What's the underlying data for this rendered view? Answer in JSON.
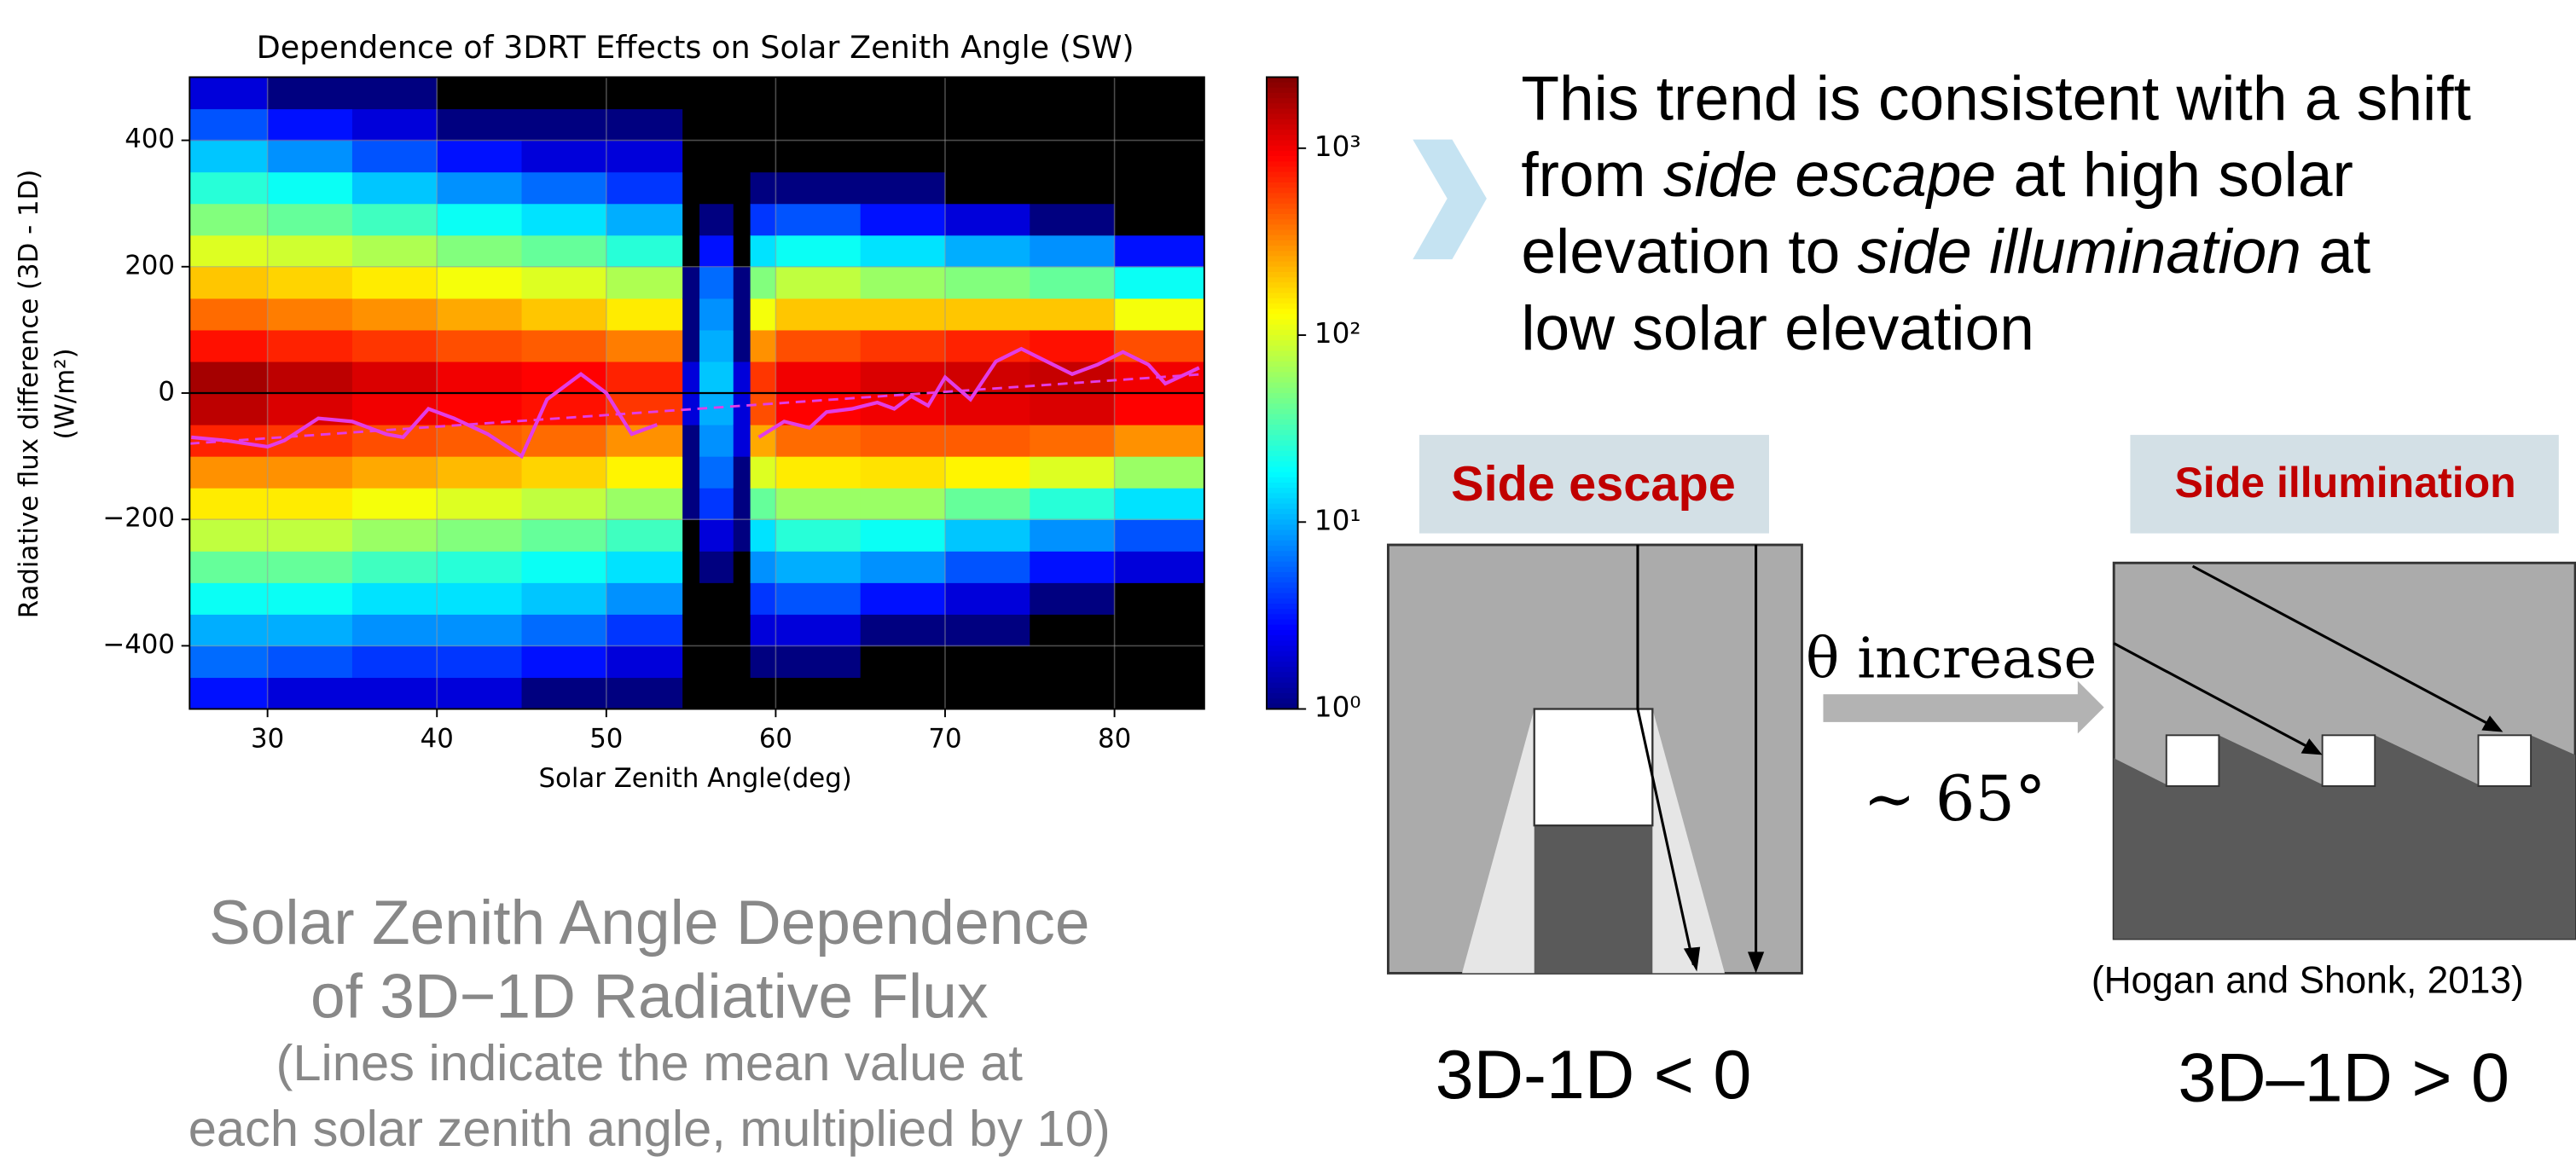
{
  "chart_data": {
    "type": "hist2d",
    "title": "Dependence of 3DRT Effects on Solar Zenith Angle (SW)",
    "xlabel": "Solar Zenith Angle(deg)",
    "ylabel": [
      "Radiative flux difference (3D - 1D)",
      "(W/m²)"
    ],
    "xlim": [
      25.4,
      85.3
    ],
    "ylim": [
      -500,
      500
    ],
    "xticks": [
      30,
      40,
      50,
      60,
      70,
      80
    ],
    "yticks": [
      {
        "value": -400,
        "label": "−400"
      },
      {
        "value": -200,
        "label": "−200"
      },
      0,
      200,
      400
    ],
    "grid": true,
    "colormap": "jet",
    "log_color": true,
    "clim": [
      1,
      2400
    ],
    "cticks": [
      {
        "value": 1,
        "label": "10⁰"
      },
      {
        "value": 10,
        "label": "10¹"
      },
      {
        "value": 100,
        "label": "10²"
      },
      {
        "value": 1000,
        "label": "10³"
      }
    ],
    "xbins": [
      25.4,
      30,
      35,
      40,
      45,
      50,
      54.5,
      55.5,
      57.5,
      58.5,
      60,
      65,
      70,
      75,
      80,
      85.3
    ],
    "ybins": [
      -500,
      -450,
      -400,
      -350,
      -300,
      -250,
      -200,
      -150,
      -100,
      -50,
      0,
      50,
      100,
      150,
      200,
      250,
      300,
      350,
      400,
      450,
      500
    ],
    "counts": [
      [
        3,
        6,
        10,
        20,
        40,
        80,
        150,
        300,
        700,
        1500,
        1800,
        800,
        400,
        200,
        100,
        50,
        25,
        12,
        5,
        2
      ],
      [
        2,
        5,
        10,
        20,
        40,
        80,
        150,
        300,
        600,
        1200,
        1500,
        700,
        350,
        180,
        90,
        40,
        20,
        8,
        3,
        1
      ],
      [
        2,
        4,
        8,
        15,
        30,
        60,
        120,
        250,
        500,
        1000,
        1200,
        600,
        300,
        150,
        70,
        30,
        12,
        5,
        2,
        1
      ],
      [
        2,
        4,
        8,
        15,
        25,
        50,
        100,
        220,
        450,
        900,
        1000,
        500,
        250,
        120,
        50,
        20,
        8,
        3,
        1,
        0
      ],
      [
        1,
        3,
        6,
        12,
        20,
        40,
        80,
        180,
        400,
        800,
        900,
        450,
        200,
        100,
        40,
        15,
        6,
        2,
        1,
        0
      ],
      [
        1,
        2,
        4,
        8,
        15,
        30,
        60,
        140,
        300,
        600,
        700,
        350,
        150,
        70,
        25,
        10,
        4,
        2,
        1,
        0
      ],
      [
        0,
        0,
        0,
        0,
        0,
        0,
        1,
        1,
        1,
        2,
        2,
        1,
        1,
        1,
        0,
        0,
        0,
        0,
        0,
        0
      ],
      [
        0,
        0,
        0,
        0,
        1,
        2,
        4,
        6,
        8,
        10,
        12,
        10,
        8,
        6,
        3,
        1,
        0,
        0,
        0,
        0
      ],
      [
        0,
        0,
        0,
        0,
        0,
        1,
        1,
        1,
        2,
        2,
        2,
        1,
        1,
        1,
        0,
        0,
        0,
        0,
        0,
        0
      ],
      [
        0,
        1,
        2,
        4,
        8,
        15,
        40,
        100,
        250,
        500,
        600,
        300,
        120,
        50,
        15,
        4,
        1,
        0,
        0,
        0
      ],
      [
        0,
        1,
        2,
        5,
        10,
        25,
        60,
        150,
        400,
        900,
        1000,
        500,
        200,
        80,
        20,
        5,
        1,
        0,
        0,
        0
      ],
      [
        0,
        0,
        1,
        3,
        8,
        20,
        60,
        160,
        450,
        1000,
        1200,
        600,
        200,
        60,
        15,
        3,
        1,
        0,
        0,
        0
      ],
      [
        0,
        0,
        1,
        2,
        5,
        12,
        40,
        140,
        450,
        1100,
        1300,
        700,
        200,
        50,
        10,
        2,
        0,
        0,
        0,
        0
      ],
      [
        0,
        0,
        0,
        1,
        3,
        8,
        25,
        100,
        400,
        1200,
        1400,
        800,
        200,
        40,
        8,
        1,
        0,
        0,
        0,
        0
      ],
      [
        0,
        0,
        0,
        0,
        2,
        5,
        15,
        60,
        300,
        900,
        1000,
        500,
        120,
        20,
        3,
        0,
        0,
        0,
        0,
        0
      ]
    ],
    "hline": {
      "value": 0,
      "color": "#000000"
    },
    "series": [
      {
        "color": "#e23de6",
        "dashed": false,
        "x": [
          25.5,
          27.5,
          30,
          31,
          33,
          35,
          37,
          38,
          39.5,
          41,
          43,
          45,
          46.5,
          48.5,
          50,
          51.5,
          53,
          56,
          59,
          60.5,
          62,
          63,
          64.5,
          66,
          67,
          68,
          69,
          70,
          71.5,
          73,
          74.5,
          76,
          77.5,
          79,
          80.5,
          82,
          83,
          85
        ],
        "values": [
          -70,
          -75,
          -85,
          -75,
          -40,
          -45,
          -65,
          -70,
          -25,
          -40,
          -65,
          -100,
          -10,
          30,
          0,
          -65,
          -50,
          null,
          -70,
          -45,
          -55,
          -30,
          -25,
          -15,
          -25,
          -5,
          -20,
          25,
          -10,
          50,
          70,
          50,
          30,
          45,
          65,
          45,
          15,
          40
        ]
      },
      {
        "color": "#e23de6",
        "dashed": true,
        "x": [
          25.4,
          85.3
        ],
        "values": [
          -80,
          30
        ]
      }
    ]
  },
  "caption": {
    "lines": [
      "Solar Zenith Angle Dependence",
      "of 3D−1D Radiative Flux"
    ],
    "note": [
      "(Lines indicate the mean value at",
      "each solar zenith angle, multiplied by 10)"
    ]
  },
  "statement": {
    "lines": [
      [
        {
          "text": "This trend is consistent with a shift",
          "italic": false
        }
      ],
      [
        {
          "text": "from ",
          "italic": false
        },
        {
          "text": "side escape",
          "italic": true
        },
        {
          "text": " at high solar",
          "italic": false
        }
      ],
      [
        {
          "text": "elevation to ",
          "italic": false
        },
        {
          "text": "side illumination",
          "italic": true
        },
        {
          "text": " at",
          "italic": false
        }
      ],
      [
        {
          "text": "low solar elevation",
          "italic": false
        }
      ]
    ]
  },
  "panels": [
    {
      "label": "Side escape",
      "result": "3D-1D < 0"
    },
    {
      "label": "Side illumination",
      "result": "3D–1D > 0",
      "source": "(Hogan and Shonk, 2013)"
    }
  ],
  "transition": {
    "label": "θ increase",
    "angle": "∼ 65°"
  }
}
